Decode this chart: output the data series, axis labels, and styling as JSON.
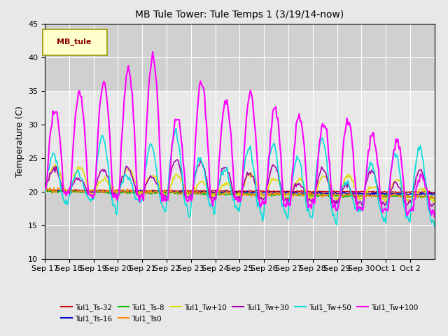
{
  "title": "MB Tule Tower: Tule Temps 1 (3/19/14-now)",
  "ylabel": "Temperature (C)",
  "ylim": [
    10,
    45
  ],
  "yticks": [
    10,
    15,
    20,
    25,
    30,
    35,
    40,
    45
  ],
  "series": {
    "Tul1_Ts-32": {
      "color": "#cc0000",
      "lw": 1.2
    },
    "Tul1_Ts-16": {
      "color": "#0000cc",
      "lw": 1.2
    },
    "Tul1_Ts-8": {
      "color": "#00bb00",
      "lw": 1.2
    },
    "Tul1_Ts0": {
      "color": "#ff8800",
      "lw": 1.2
    },
    "Tul1_Tw+10": {
      "color": "#dddd00",
      "lw": 1.2
    },
    "Tul1_Tw+30": {
      "color": "#aa00aa",
      "lw": 1.2
    },
    "Tul1_Tw+50": {
      "color": "#00dddd",
      "lw": 1.2
    },
    "Tul1_Tw+100": {
      "color": "#ff00ff",
      "lw": 1.5
    }
  },
  "legend_label": "MB_tule",
  "legend_box_color": "#ffffcc",
  "legend_text_color": "#880000",
  "n_days": 16,
  "xtick_labels": [
    "Sep 17",
    "Sep 18",
    "Sep 19",
    "Sep 20",
    "Sep 21",
    "Sep 22",
    "Sep 23",
    "Sep 24",
    "Sep 25",
    "Sep 26",
    "Sep 27",
    "Sep 28",
    "Sep 29",
    "Sep 30",
    "Oct 1",
    "Oct 2"
  ],
  "peak_amps_tw100": [
    12,
    15,
    17,
    19,
    21,
    12,
    18,
    15,
    16,
    14,
    13,
    12.5,
    13,
    11,
    10,
    5
  ],
  "night_dips_tw100": [
    4,
    4,
    5,
    6,
    6,
    5,
    5,
    4,
    4,
    3,
    3,
    3,
    3,
    4,
    4,
    2
  ]
}
